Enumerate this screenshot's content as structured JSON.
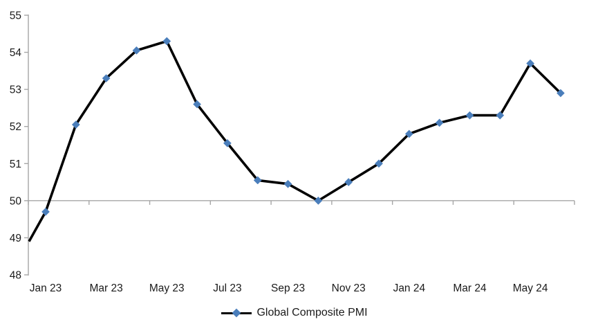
{
  "chart_data": {
    "type": "line",
    "title": "",
    "categories": [
      "Jan 23",
      "Feb 23",
      "Mar 23",
      "Apr 23",
      "May 23",
      "Jun 23",
      "Jul 23",
      "Aug 23",
      "Sep 23",
      "Oct 23",
      "Nov 23",
      "Dec 23",
      "Jan 24",
      "Feb 24",
      "Mar 24",
      "Apr 24",
      "May 24",
      "Jun 24"
    ],
    "series": [
      {
        "name": "Global Composite PMI",
        "values": [
          49.7,
          52.05,
          53.3,
          54.05,
          54.3,
          52.6,
          51.55,
          50.55,
          50.45,
          50.0,
          50.5,
          51.0,
          51.8,
          52.1,
          52.3,
          52.3,
          53.7,
          52.9
        ]
      }
    ],
    "edge_entry": {
      "value": 48.9,
      "note": "series line enters the plot at the left axis at ~48.9, rising to the Jan 23 point"
    },
    "ylim": [
      48,
      55
    ],
    "y_ticks": [
      55,
      54,
      53,
      52,
      51,
      50,
      49,
      48
    ],
    "x_tick_labels": [
      "Jan 23",
      "Mar 23",
      "May 23",
      "Jul 23",
      "Sep 23",
      "Nov 23",
      "Jan 24",
      "Mar 24",
      "May 24"
    ],
    "x_axis_cross_value": 50,
    "grid": "single horizontal category-axis line at value 50 with downward tick marks every 2 months; no other gridlines; no top/right border",
    "legend_position": "bottom-center",
    "legend_marker": "diamond",
    "colors": {
      "line": "#000000",
      "marker": "#4A7EBB",
      "axis": "#A6A6A6",
      "text": "#1A1A1A"
    }
  }
}
